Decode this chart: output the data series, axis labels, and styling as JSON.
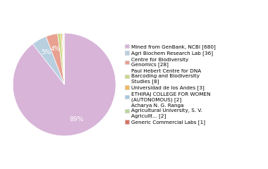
{
  "labels": [
    "Mined from GenBank, NCBI [680]",
    "Agri Biochem Research Lab [36]",
    "Centre for Biodiversity\nGenomics [28]",
    "Paul Hebert Centre for DNA\nBarcoding and Biodiversity\nStudies [8]",
    "Universidad de los Andes [3]",
    "ETHIRAJ COLLEGE FOR WOMEN\n(AUTONOMOUS) [2]",
    "Acharya N. G. Ranga\nAgricultural University, S. V.\nAgricullt... [2]",
    "Generic Commercial Labs [1]"
  ],
  "values": [
    680,
    36,
    28,
    8,
    3,
    2,
    2,
    1
  ],
  "colors": [
    "#d8b4d8",
    "#b8cfe0",
    "#e8a090",
    "#ccd888",
    "#f0b860",
    "#a8c8e0",
    "#b8d898",
    "#d87060"
  ],
  "autopct_threshold": 3.0,
  "text_color": "white",
  "figsize": [
    3.8,
    2.4
  ],
  "dpi": 100
}
